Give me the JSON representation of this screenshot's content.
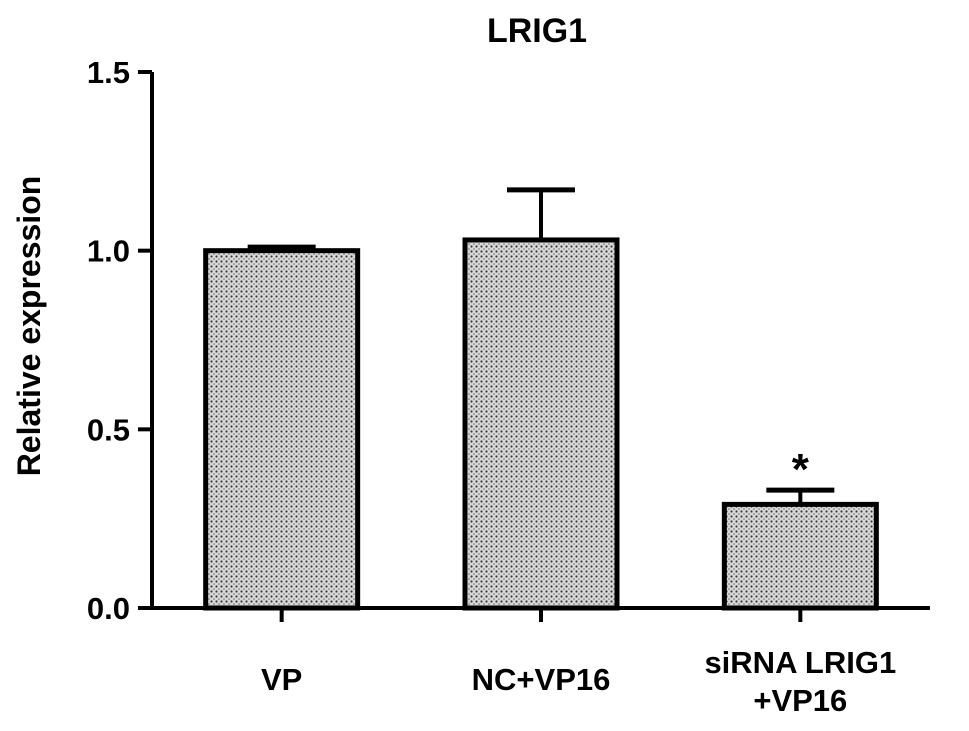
{
  "chart_data": {
    "type": "bar",
    "title": "LRIG1",
    "xlabel": "",
    "ylabel": "Relative expression",
    "ylim": [
      0,
      1.5
    ],
    "yticks": [
      "0.0",
      "0.5",
      "1.0",
      "1.5"
    ],
    "categories": [
      [
        "VP"
      ],
      [
        "NC+VP16"
      ],
      [
        "siRNA LRIG1",
        "+VP16"
      ]
    ],
    "values": [
      1.0,
      1.03,
      0.29
    ],
    "errors": [
      0.01,
      0.14,
      0.04
    ],
    "annotations": [
      "",
      "",
      "*"
    ],
    "bar_fill": "dotted gray",
    "grid": false,
    "legend": "none"
  }
}
